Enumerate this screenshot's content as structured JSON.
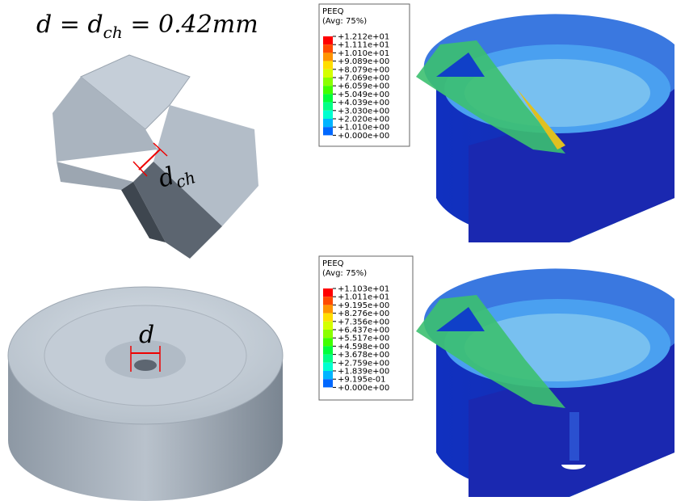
{
  "equation": {
    "lhs": "d",
    "eq1": "=",
    "mid": "d",
    "mid_sub": "ch",
    "eq2": "=",
    "rhs": "0.42mm"
  },
  "drill_label": {
    "main": "d",
    "sub": "ch"
  },
  "hole_label": "d",
  "legend_top": {
    "title": "PEEQ",
    "subtitle": "(Avg: 75%)",
    "values": [
      "+1.212e+01",
      "+1.111e+01",
      "+1.010e+01",
      "+9.089e+00",
      "+8.079e+00",
      "+7.069e+00",
      "+6.059e+00",
      "+5.049e+00",
      "+4.039e+00",
      "+3.030e+00",
      "+2.020e+00",
      "+1.010e+00",
      "+0.000e+00"
    ]
  },
  "legend_bottom": {
    "title": "PEEQ",
    "subtitle": "(Avg: 75%)",
    "values": [
      "+1.103e+01",
      "+1.011e+01",
      "+9.195e+00",
      "+8.276e+00",
      "+7.356e+00",
      "+6.437e+00",
      "+5.517e+00",
      "+4.598e+00",
      "+3.678e+00",
      "+2.759e+00",
      "+1.839e+00",
      "+9.195e-01",
      "+0.000e+00"
    ]
  }
}
